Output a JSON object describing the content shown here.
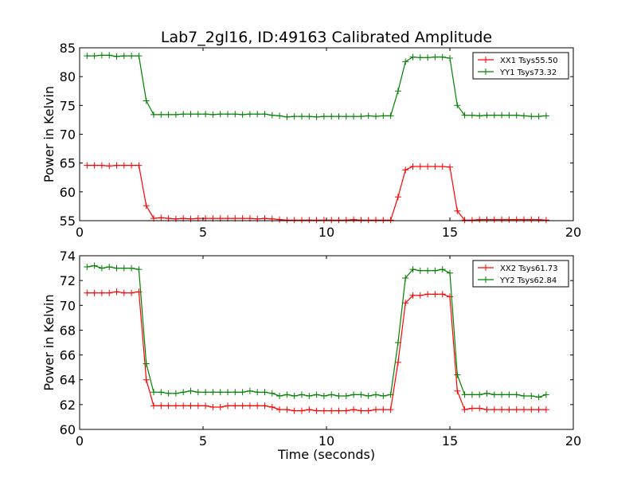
{
  "figure": {
    "title": "Lab7_2gl16, ID:49163 Calibrated Amplitude"
  },
  "chart_data": [
    {
      "type": "line",
      "title": "Lab7_2gl16, ID:49163 Calibrated Amplitude",
      "xlabel": "",
      "ylabel": "Power in Kelvin",
      "xlim": [
        0,
        20
      ],
      "ylim": [
        55,
        85
      ],
      "xticks": [
        0,
        5,
        10,
        15,
        20
      ],
      "yticks": [
        55,
        60,
        65,
        70,
        75,
        80,
        85
      ],
      "grid": false,
      "legend_position": "top-right",
      "x": [
        0.3,
        0.6,
        0.9,
        1.2,
        1.5,
        1.8,
        2.1,
        2.4,
        2.7,
        3.0,
        3.3,
        3.6,
        3.9,
        4.2,
        4.5,
        4.8,
        5.1,
        5.4,
        5.7,
        6.0,
        6.3,
        6.6,
        6.9,
        7.2,
        7.5,
        7.8,
        8.1,
        8.4,
        8.7,
        9.0,
        9.3,
        9.6,
        9.9,
        10.2,
        10.5,
        10.8,
        11.1,
        11.4,
        11.7,
        12.0,
        12.3,
        12.6,
        12.9,
        13.2,
        13.5,
        13.8,
        14.1,
        14.4,
        14.7,
        15.0,
        15.3,
        15.6,
        15.9,
        16.2,
        16.5,
        16.8,
        17.1,
        17.4,
        17.7,
        18.0,
        18.3,
        18.6,
        18.9
      ],
      "series": [
        {
          "name": "XX1 Tsys55.50",
          "color": "#ff0000",
          "values": [
            64.6,
            64.6,
            64.6,
            64.5,
            64.6,
            64.6,
            64.6,
            64.6,
            57.6,
            55.4,
            55.5,
            55.4,
            55.3,
            55.4,
            55.3,
            55.4,
            55.4,
            55.4,
            55.4,
            55.4,
            55.4,
            55.4,
            55.4,
            55.3,
            55.4,
            55.3,
            55.2,
            55.1,
            55.1,
            55.1,
            55.1,
            55.1,
            55.1,
            55.1,
            55.1,
            55.1,
            55.2,
            55.1,
            55.1,
            55.1,
            55.1,
            55.1,
            59.1,
            63.8,
            64.4,
            64.4,
            64.4,
            64.4,
            64.4,
            64.3,
            56.7,
            55.1,
            55.1,
            55.2,
            55.2,
            55.2,
            55.2,
            55.2,
            55.2,
            55.2,
            55.2,
            55.2,
            55.1
          ]
        },
        {
          "name": "YY1 Tsys73.32",
          "color": "#008000",
          "values": [
            83.6,
            83.6,
            83.7,
            83.7,
            83.5,
            83.6,
            83.6,
            83.6,
            75.8,
            73.4,
            73.4,
            73.4,
            73.4,
            73.5,
            73.5,
            73.5,
            73.5,
            73.4,
            73.5,
            73.5,
            73.5,
            73.4,
            73.5,
            73.5,
            73.5,
            73.3,
            73.2,
            73.0,
            73.1,
            73.1,
            73.1,
            73.0,
            73.1,
            73.1,
            73.1,
            73.1,
            73.1,
            73.1,
            73.2,
            73.1,
            73.2,
            73.2,
            77.5,
            82.6,
            83.4,
            83.3,
            83.3,
            83.4,
            83.4,
            83.2,
            75.0,
            73.3,
            73.3,
            73.2,
            73.3,
            73.3,
            73.3,
            73.3,
            73.3,
            73.2,
            73.1,
            73.1,
            73.2
          ]
        }
      ]
    },
    {
      "type": "line",
      "title": "",
      "xlabel": "Time (seconds)",
      "ylabel": "Power in Kelvin",
      "xlim": [
        0,
        20
      ],
      "ylim": [
        60,
        74
      ],
      "xticks": [
        0,
        5,
        10,
        15,
        20
      ],
      "yticks": [
        60,
        62,
        64,
        66,
        68,
        70,
        72,
        74
      ],
      "grid": false,
      "legend_position": "top-right",
      "x": [
        0.3,
        0.6,
        0.9,
        1.2,
        1.5,
        1.8,
        2.1,
        2.4,
        2.7,
        3.0,
        3.3,
        3.6,
        3.9,
        4.2,
        4.5,
        4.8,
        5.1,
        5.4,
        5.7,
        6.0,
        6.3,
        6.6,
        6.9,
        7.2,
        7.5,
        7.8,
        8.1,
        8.4,
        8.7,
        9.0,
        9.3,
        9.6,
        9.9,
        10.2,
        10.5,
        10.8,
        11.1,
        11.4,
        11.7,
        12.0,
        12.3,
        12.6,
        12.9,
        13.2,
        13.5,
        13.8,
        14.1,
        14.4,
        14.7,
        15.0,
        15.3,
        15.6,
        15.9,
        16.2,
        16.5,
        16.8,
        17.1,
        17.4,
        17.7,
        18.0,
        18.3,
        18.6,
        18.9
      ],
      "series": [
        {
          "name": "XX2 Tsys61.73",
          "color": "#ff0000",
          "values": [
            71.0,
            71.0,
            71.0,
            71.0,
            71.1,
            71.0,
            71.0,
            71.1,
            64.0,
            61.9,
            61.9,
            61.9,
            61.9,
            61.9,
            61.9,
            61.9,
            61.9,
            61.8,
            61.8,
            61.9,
            61.9,
            61.9,
            61.9,
            61.9,
            61.9,
            61.8,
            61.6,
            61.6,
            61.5,
            61.5,
            61.6,
            61.5,
            61.5,
            61.5,
            61.5,
            61.5,
            61.6,
            61.5,
            61.5,
            61.6,
            61.6,
            61.6,
            65.4,
            70.2,
            70.8,
            70.8,
            70.9,
            70.9,
            70.9,
            70.7,
            63.1,
            61.6,
            61.7,
            61.7,
            61.6,
            61.6,
            61.6,
            61.6,
            61.6,
            61.6,
            61.6,
            61.6,
            61.6
          ]
        },
        {
          "name": "YY2 Tsys62.84",
          "color": "#008000",
          "values": [
            73.1,
            73.2,
            73.0,
            73.1,
            73.0,
            73.0,
            73.0,
            72.9,
            65.3,
            63.0,
            63.0,
            62.9,
            62.9,
            63.0,
            63.1,
            63.0,
            63.0,
            63.0,
            63.0,
            63.0,
            63.0,
            63.0,
            63.1,
            63.0,
            63.0,
            62.9,
            62.7,
            62.8,
            62.7,
            62.8,
            62.7,
            62.8,
            62.7,
            62.8,
            62.7,
            62.7,
            62.8,
            62.8,
            62.7,
            62.8,
            62.7,
            62.8,
            67.0,
            72.2,
            72.9,
            72.8,
            72.8,
            72.8,
            72.9,
            72.6,
            64.4,
            62.8,
            62.8,
            62.8,
            62.9,
            62.8,
            62.8,
            62.8,
            62.8,
            62.7,
            62.7,
            62.6,
            62.8
          ]
        }
      ]
    }
  ]
}
